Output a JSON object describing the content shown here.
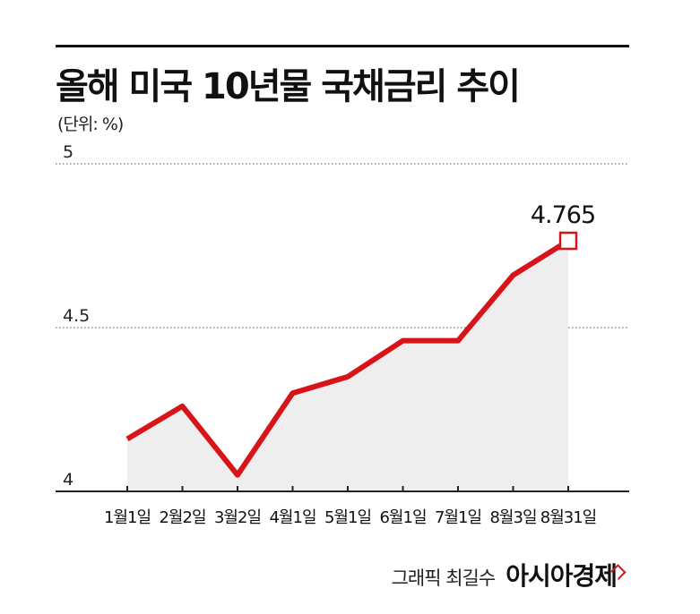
{
  "title": "올해 미국 10년물 국채금리 추이",
  "unit_label": "(단위: %)",
  "credit": "그래픽 최길수",
  "brand": "아시아경제",
  "colors": {
    "line": "#d7141a",
    "area": "#eeeeee",
    "axis": "#222222",
    "grid": "#555555"
  },
  "chart_data": {
    "type": "line",
    "categories": [
      "1월1일",
      "2월2일",
      "3월2일",
      "4월1일",
      "5월1일",
      "6월1일",
      "7월1일",
      "8월3일",
      "8월31일"
    ],
    "values": [
      4.16,
      4.26,
      4.05,
      4.3,
      4.35,
      4.46,
      4.46,
      4.66,
      4.765
    ],
    "ylim": [
      4,
      5
    ],
    "yticks": [
      "4",
      "4.5",
      "5"
    ],
    "highlight": {
      "index": 8,
      "label": "4.765"
    },
    "grid": true
  }
}
